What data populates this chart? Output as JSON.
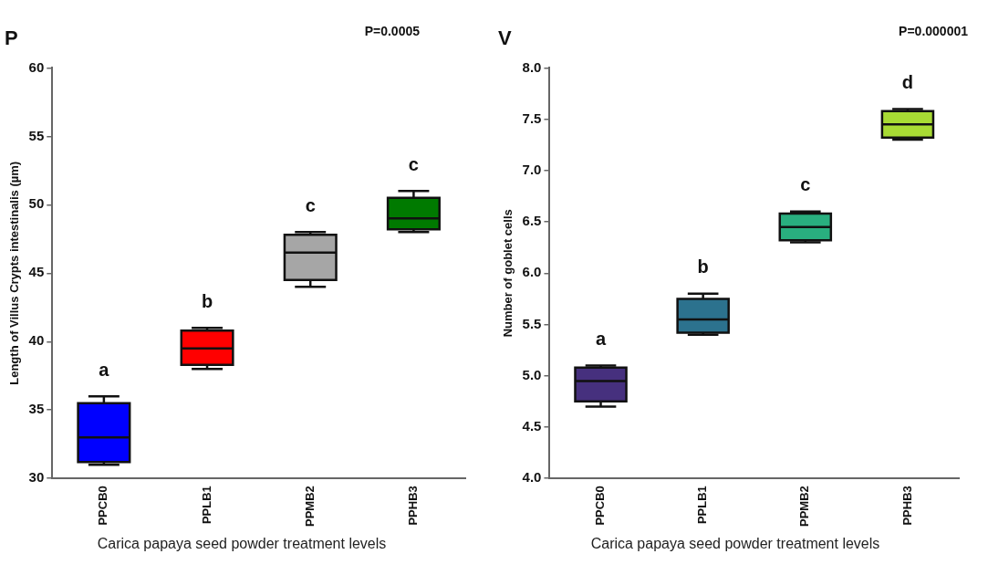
{
  "chart_data": [
    {
      "type": "box",
      "title": "P",
      "ylabel": "Length of Villus Crypts intestinalis (µm)",
      "xlabel": "Carica papaya seed powder treatment levels",
      "categories": [
        "PPCB0",
        "PPLB1",
        "PPMB2",
        "PPHB3"
      ],
      "boxes": [
        {
          "low": 31,
          "q1": 31.2,
          "median": 33,
          "q3": 35.5,
          "high": 36
        },
        {
          "low": 38,
          "q1": 38.3,
          "median": 39.5,
          "q3": 40.8,
          "high": 41
        },
        {
          "low": 44,
          "q1": 44.5,
          "median": 46.5,
          "q3": 47.8,
          "high": 48
        },
        {
          "low": 48,
          "q1": 48.2,
          "median": 49,
          "q3": 50.5,
          "high": 51
        }
      ],
      "colors": [
        "#0000ff",
        "#ff0000",
        "#a6a6a6",
        "#007a00"
      ],
      "ylim": [
        30,
        60
      ],
      "yticks": [
        30,
        35,
        40,
        45,
        50,
        55,
        60
      ],
      "grid": false,
      "annotations": [
        "P=0.0005",
        "a",
        "b",
        "c",
        "c"
      ]
    },
    {
      "type": "box",
      "title": "V",
      "ylabel": "Number of goblet cells",
      "xlabel": "Carica papaya seed powder treatment levels",
      "categories": [
        "PPCB0",
        "PPLB1",
        "PPMB2",
        "PPHB3"
      ],
      "boxes": [
        {
          "low": 4.7,
          "q1": 4.75,
          "median": 4.95,
          "q3": 5.08,
          "high": 5.1
        },
        {
          "low": 5.4,
          "q1": 5.42,
          "median": 5.55,
          "q3": 5.75,
          "high": 5.8
        },
        {
          "low": 6.3,
          "q1": 6.32,
          "median": 6.45,
          "q3": 6.58,
          "high": 6.6
        },
        {
          "low": 7.3,
          "q1": 7.32,
          "median": 7.45,
          "q3": 7.58,
          "high": 7.6
        }
      ],
      "colors": [
        "#46307e",
        "#2c728e",
        "#29af7f",
        "#a8db34"
      ],
      "ylim": [
        4,
        8
      ],
      "yticks": [
        {
          "value": 4,
          "label": "4.0"
        },
        {
          "value": 4.5,
          "label": "4.5"
        },
        {
          "value": 5,
          "label": "5.0"
        },
        {
          "value": 5.5,
          "label": "5.5"
        },
        {
          "value": 6,
          "label": "6.0"
        },
        {
          "value": 6.5,
          "label": "6.5"
        },
        {
          "value": 7,
          "label": "7.0"
        },
        {
          "value": 7.5,
          "label": "7.5"
        },
        {
          "value": 8,
          "label": "8.0"
        }
      ],
      "grid": false,
      "annotations": [
        "P=0.000001",
        "a",
        "b",
        "c",
        "d"
      ]
    }
  ]
}
